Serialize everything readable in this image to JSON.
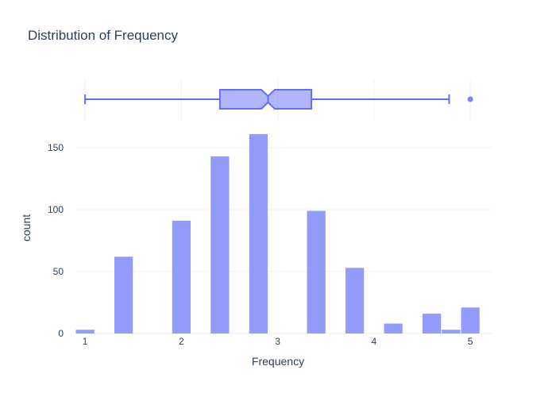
{
  "chart_data": {
    "type": "histogram",
    "title": "Distribution of Frequency",
    "xlabel": "Frequency",
    "ylabel": "count",
    "xlim": [
      0.9,
      5.23
    ],
    "ylim": [
      0,
      175
    ],
    "xticks": [
      1,
      2,
      3,
      4,
      5
    ],
    "yticks": [
      0,
      50,
      100,
      150
    ],
    "grid": true,
    "bar_color": "#7a85f8",
    "box_color": "#636efa",
    "bin_width": 0.2,
    "bins": [
      {
        "x0": 0.9,
        "x1": 1.1,
        "count": 3
      },
      {
        "x0": 1.3,
        "x1": 1.5,
        "count": 62
      },
      {
        "x0": 1.9,
        "x1": 2.1,
        "count": 91
      },
      {
        "x0": 2.3,
        "x1": 2.5,
        "count": 143
      },
      {
        "x0": 2.7,
        "x1": 2.9,
        "count": 161
      },
      {
        "x0": 3.3,
        "x1": 3.5,
        "count": 99
      },
      {
        "x0": 3.7,
        "x1": 3.9,
        "count": 53
      },
      {
        "x0": 4.1,
        "x1": 4.3,
        "count": 8
      },
      {
        "x0": 4.5,
        "x1": 4.7,
        "count": 16
      },
      {
        "x0": 4.7,
        "x1": 4.9,
        "count": 3
      },
      {
        "x0": 4.9,
        "x1": 5.1,
        "count": 21
      }
    ],
    "marginal_box": {
      "min": 1.0,
      "q1": 2.4,
      "median": 2.9,
      "q3": 3.35,
      "upper_fence": 4.78,
      "notch_low": 2.83,
      "notch_high": 2.97,
      "outliers": [
        5.0
      ]
    }
  }
}
